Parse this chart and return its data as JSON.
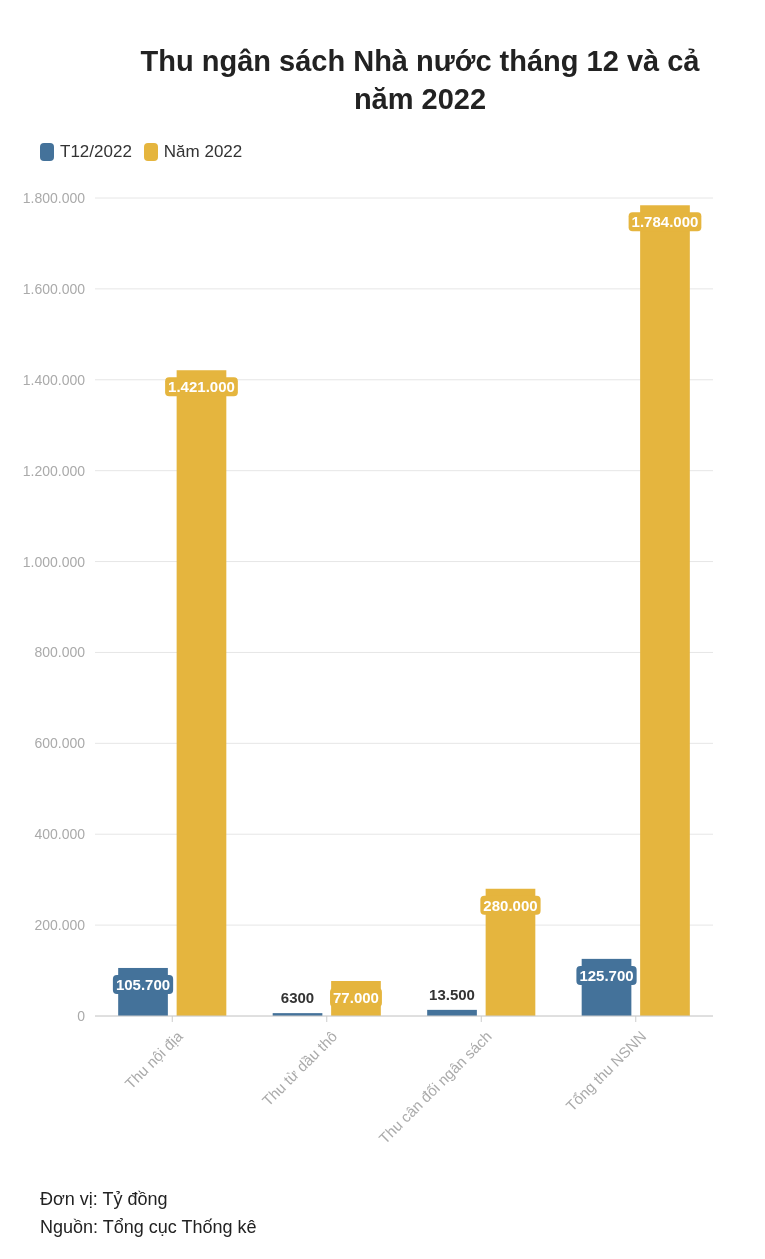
{
  "chart_data": {
    "type": "bar",
    "title": "Thu ngân sách Nhà nước tháng 12 và cả năm 2022",
    "categories": [
      "Thu nội địa",
      "Thu từ dầu thô",
      "Thu cân đối ngân sách",
      "Tổng thu NSNN"
    ],
    "series": [
      {
        "name": "T12/2022",
        "color": "#44729a",
        "values": [
          105700,
          6300,
          13500,
          125700
        ],
        "value_labels": [
          "105.700",
          "6300",
          "13.500",
          "125.700"
        ]
      },
      {
        "name": "Năm 2022",
        "color": "#e5b53e",
        "values": [
          1421000,
          77000,
          280000,
          1784000
        ],
        "value_labels": [
          "1.421.000",
          "77.000",
          "280.000",
          "1.784.000"
        ]
      }
    ],
    "ylim": [
      0,
      1800000
    ],
    "yticks": [
      0,
      {
        "value": 200000,
        "label": "200.000"
      },
      {
        "value": 400000,
        "label": "400.000"
      },
      {
        "value": 600000,
        "label": "600.000"
      },
      {
        "value": 800000,
        "label": "800.000"
      },
      {
        "value": 1000000,
        "label": "1.000.000"
      },
      {
        "value": 1200000,
        "label": "1.200.000"
      },
      {
        "value": 1400000,
        "label": "1.400.000"
      },
      {
        "value": 1600000,
        "label": "1.600.000"
      },
      {
        "value": 1800000,
        "label": "1.800.000"
      }
    ],
    "grid": "y",
    "legend": "top left",
    "annotations": [
      "Đơn vị: Tỷ đồng",
      "Nguồn: Tổng cục Thống kê"
    ]
  }
}
